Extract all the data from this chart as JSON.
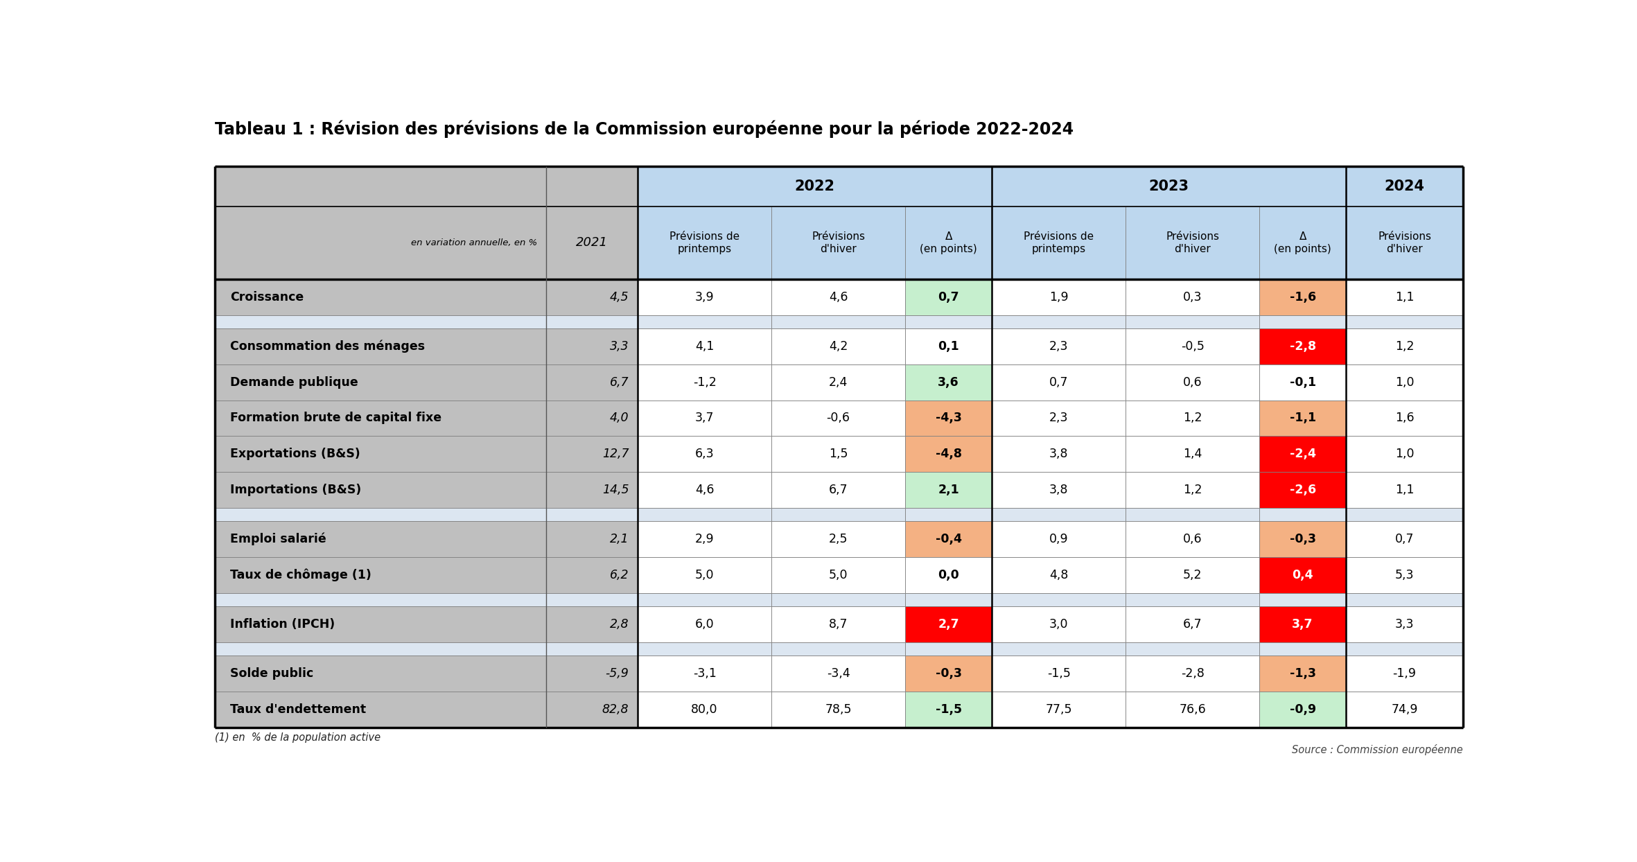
{
  "title": "Tableau 1 : Révision des prévisions de la Commission européenne pour la période 2022-2024",
  "footnote1": "(1) en  % de la population active",
  "footnote2": "Source : Commission européenne",
  "rows": [
    {
      "label": "Croissance",
      "label_parts": [
        [
          "Croissance",
          "bold"
        ]
      ],
      "vals": [
        4.5,
        3.9,
        4.6,
        0.7,
        1.9,
        0.3,
        -1.6,
        1.1
      ],
      "delta2022_color": "light_green",
      "delta2023_color": "light_orange",
      "spacer": false
    },
    {
      "label": "",
      "label_parts": [],
      "vals": [
        null,
        null,
        null,
        null,
        null,
        null,
        null,
        null
      ],
      "delta2022_color": "none",
      "delta2023_color": "none",
      "spacer": true
    },
    {
      "label": "Consommation des ménages",
      "label_parts": [
        [
          "Consommation des ménages",
          "bold"
        ]
      ],
      "vals": [
        3.3,
        4.1,
        4.2,
        0.1,
        2.3,
        -0.5,
        -2.8,
        1.2
      ],
      "delta2022_color": "none",
      "delta2023_color": "red",
      "spacer": false
    },
    {
      "label": "Demande publique",
      "label_parts": [
        [
          "Demande publique",
          "bold"
        ]
      ],
      "vals": [
        6.7,
        -1.2,
        2.4,
        3.6,
        0.7,
        0.6,
        -0.1,
        1.0
      ],
      "delta2022_color": "light_green",
      "delta2023_color": "none",
      "spacer": false
    },
    {
      "label": "Formation brute de capital fixe",
      "label_parts": [
        [
          "Formation brute de capital fixe",
          "bold"
        ]
      ],
      "vals": [
        4.0,
        3.7,
        -0.6,
        -4.3,
        2.3,
        1.2,
        -1.1,
        1.6
      ],
      "delta2022_color": "light_orange",
      "delta2023_color": "light_orange",
      "spacer": false
    },
    {
      "label": "Exportations (B&S)",
      "label_parts": [
        [
          "Exportations ",
          "bold"
        ],
        [
          "(B&S)",
          "normal"
        ]
      ],
      "vals": [
        12.7,
        6.3,
        1.5,
        -4.8,
        3.8,
        1.4,
        -2.4,
        1.0
      ],
      "delta2022_color": "light_orange",
      "delta2023_color": "red",
      "spacer": false
    },
    {
      "label": "Importations (B&S)",
      "label_parts": [
        [
          "Importations ",
          "bold"
        ],
        [
          "(B&S)",
          "normal"
        ]
      ],
      "vals": [
        14.5,
        4.6,
        6.7,
        2.1,
        3.8,
        1.2,
        -2.6,
        1.1
      ],
      "delta2022_color": "light_green",
      "delta2023_color": "red",
      "spacer": false
    },
    {
      "label": "",
      "label_parts": [],
      "vals": [
        null,
        null,
        null,
        null,
        null,
        null,
        null,
        null
      ],
      "delta2022_color": "none",
      "delta2023_color": "none",
      "spacer": true
    },
    {
      "label": "Emploi salarié",
      "label_parts": [
        [
          "Emploi salarié",
          "bold"
        ]
      ],
      "vals": [
        2.1,
        2.9,
        2.5,
        -0.4,
        0.9,
        0.6,
        -0.3,
        0.7
      ],
      "delta2022_color": "light_orange",
      "delta2023_color": "light_orange",
      "spacer": false
    },
    {
      "label": "Taux de chômage (1)",
      "label_parts": [
        [
          "Taux de chômage ",
          "bold"
        ],
        [
          "(1)",
          "italic"
        ]
      ],
      "vals": [
        6.2,
        5.0,
        5.0,
        0.0,
        4.8,
        5.2,
        0.4,
        5.3
      ],
      "delta2022_color": "none",
      "delta2023_color": "red",
      "spacer": false
    },
    {
      "label": "",
      "label_parts": [],
      "vals": [
        null,
        null,
        null,
        null,
        null,
        null,
        null,
        null
      ],
      "delta2022_color": "none",
      "delta2023_color": "none",
      "spacer": true
    },
    {
      "label": "Inflation (IPCH)",
      "label_parts": [
        [
          "Inflation ",
          "bold"
        ],
        [
          "(IPCH)",
          "normal"
        ]
      ],
      "vals": [
        2.8,
        6.0,
        8.7,
        2.7,
        3.0,
        6.7,
        3.7,
        3.3
      ],
      "delta2022_color": "red",
      "delta2023_color": "red",
      "spacer": false
    },
    {
      "label": "",
      "label_parts": [],
      "vals": [
        null,
        null,
        null,
        null,
        null,
        null,
        null,
        null
      ],
      "delta2022_color": "none",
      "delta2023_color": "none",
      "spacer": true
    },
    {
      "label": "Solde public",
      "label_parts": [
        [
          "Solde public",
          "bold"
        ]
      ],
      "vals": [
        -5.9,
        -3.1,
        -3.4,
        -0.3,
        -1.5,
        -2.8,
        -1.3,
        -1.9
      ],
      "delta2022_color": "light_orange",
      "delta2023_color": "light_orange",
      "spacer": false
    },
    {
      "label": "Taux d'endettement",
      "label_parts": [
        [
          "Taux d'endettement",
          "bold"
        ]
      ],
      "vals": [
        82.8,
        80.0,
        78.5,
        -1.5,
        77.5,
        76.6,
        -0.9,
        74.9
      ],
      "delta2022_color": "light_green",
      "delta2023_color": "light_green",
      "spacer": false
    }
  ],
  "colors": {
    "header_bg": "#bdd7ee",
    "col0_bg": "#bfbfbf",
    "col1_bg": "#bfbfbf",
    "row_bg_normal": "#ffffff",
    "row_bg_spacer": "#dce6f1",
    "delta_light_green": "#c6efce",
    "delta_light_orange": "#f4b183",
    "delta_red": "#ff0000",
    "text_dark": "#000000",
    "text_white": "#ffffff",
    "border_thin": "#808080",
    "border_thick": "#000000"
  }
}
